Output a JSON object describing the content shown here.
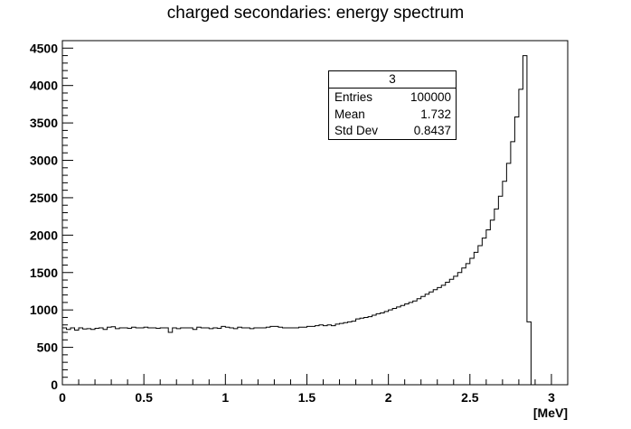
{
  "chart_data": {
    "type": "histogram",
    "title": "charged secondaries: energy spectrum",
    "xlabel": "[MeV]",
    "ylabel": "",
    "xlim": [
      0,
      3.1
    ],
    "ylim": [
      0,
      4600
    ],
    "xticks": [
      "0",
      "0.5",
      "1",
      "1.5",
      "2",
      "2.5",
      "3"
    ],
    "yticks": [
      "0",
      "500",
      "1000",
      "1500",
      "2000",
      "2500",
      "3000",
      "3500",
      "4000",
      "4500"
    ],
    "bin_width": 0.025,
    "x_start": 0,
    "values": [
      760,
      740,
      760,
      730,
      760,
      745,
      750,
      740,
      755,
      760,
      740,
      770,
      775,
      750,
      760,
      760,
      755,
      770,
      760,
      760,
      770,
      760,
      760,
      755,
      760,
      760,
      700,
      760,
      750,
      760,
      760,
      760,
      740,
      770,
      760,
      760,
      750,
      760,
      755,
      780,
      770,
      760,
      750,
      770,
      760,
      760,
      750,
      760,
      760,
      760,
      770,
      780,
      780,
      770,
      760,
      760,
      760,
      760,
      770,
      770,
      780,
      780,
      790,
      800,
      790,
      800,
      790,
      810,
      820,
      830,
      840,
      850,
      880,
      890,
      900,
      910,
      930,
      950,
      960,
      980,
      1000,
      1020,
      1040,
      1060,
      1080,
      1100,
      1120,
      1150,
      1180,
      1210,
      1240,
      1270,
      1300,
      1330,
      1370,
      1410,
      1450,
      1500,
      1560,
      1620,
      1690,
      1770,
      1860,
      1960,
      2070,
      2200,
      2350,
      2520,
      2720,
      2960,
      3250,
      3580,
      3950,
      4400,
      840,
      0
    ],
    "stats": {
      "name": "3",
      "rows": [
        {
          "label": "Entries",
          "value": "100000"
        },
        {
          "label": "Mean",
          "value": "1.732"
        },
        {
          "label": "Std Dev",
          "value": "0.8437"
        }
      ]
    }
  }
}
